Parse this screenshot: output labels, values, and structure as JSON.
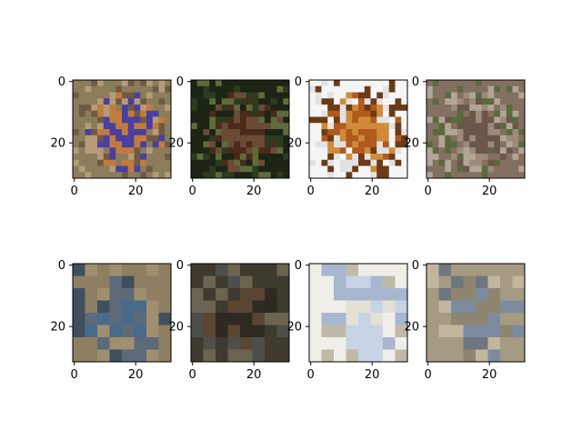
{
  "figure": {
    "panels": [
      {
        "row": 1,
        "content": "photo of a person in a purple/blue jacket holding a brown dog",
        "x_ticks": [
          "0",
          "20"
        ],
        "y_ticks": [
          "0",
          "20"
        ],
        "palette": [
          "#8b7d5b",
          "#4a3fa0",
          "#c27b3e",
          "#6f5b45",
          "#b59b78"
        ]
      },
      {
        "row": 1,
        "content": "photo of a moose head in front of dark green foliage",
        "x_ticks": [
          "0",
          "20"
        ],
        "y_ticks": [
          "0",
          "20"
        ],
        "palette": [
          "#1c2514",
          "#4a2b1a",
          "#6b4a36",
          "#5f6b3c",
          "#2d3b1e"
        ]
      },
      {
        "row": 1,
        "content": "photo of an orange deer on a white snowy background",
        "x_ticks": [
          "0",
          "20"
        ],
        "y_ticks": [
          "0",
          "20"
        ],
        "palette": [
          "#f5f5f5",
          "#b2591d",
          "#d08a3a",
          "#e2e2e2",
          "#6b3a16"
        ]
      },
      {
        "row": 1,
        "content": "photo of a brown horse on a field",
        "x_ticks": [
          "0",
          "20"
        ],
        "y_ticks": [
          "0",
          "20"
        ],
        "palette": [
          "#847060",
          "#9d8a7a",
          "#6b574a",
          "#b1a696",
          "#5a6a3e"
        ]
      },
      {
        "row": 2,
        "content": "blurry blocky reconstruction, brown with blue centre",
        "x_ticks": [
          "0",
          "20"
        ],
        "y_ticks": [
          "0",
          "20"
        ],
        "palette": [
          "#8e7f62",
          "#4a6a8a",
          "#5c6a7a",
          "#9f8f6f",
          "#3f4f5e"
        ]
      },
      {
        "row": 2,
        "content": "blurry blocky reconstruction, dark brown tones",
        "x_ticks": [
          "0",
          "20"
        ],
        "y_ticks": [
          "0",
          "20"
        ],
        "palette": [
          "#3f3a2e",
          "#5a4632",
          "#2e2a22",
          "#6b6450",
          "#4e4e4a"
        ]
      },
      {
        "row": 2,
        "content": "blurry blocky reconstruction, mostly white with light blue",
        "x_ticks": [
          "0",
          "20"
        ],
        "y_ticks": [
          "0",
          "20"
        ],
        "palette": [
          "#f0eee8",
          "#c9d3e6",
          "#e4e0d6",
          "#bfbaa8",
          "#a8b6d0"
        ]
      },
      {
        "row": 2,
        "content": "blurry blocky reconstruction, beige with grey-blue band",
        "x_ticks": [
          "0",
          "20"
        ],
        "y_ticks": [
          "0",
          "20"
        ],
        "palette": [
          "#a59a82",
          "#7c8ca0",
          "#8e8570",
          "#c2b69c",
          "#6f7680"
        ]
      }
    ]
  }
}
